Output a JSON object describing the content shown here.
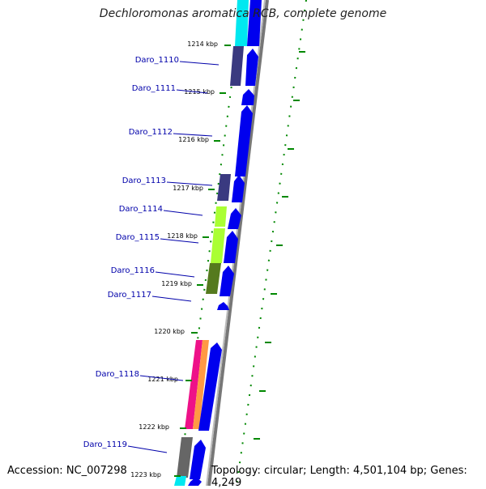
{
  "title": "Dechloromonas aromatica RCB, complete genome",
  "accession": "Accession: NC_007298",
  "topology": "Topology: circular; Length: 4,501,104 bp; Genes: 4,249",
  "colors": {
    "gene_blue": "#0000ee",
    "tick_green": "#008800",
    "label_blue": "#0000aa",
    "backbone": "#999999",
    "cog_cyan": "#00ffff",
    "cog_slate": "#3a3a80",
    "cog_lime": "#aaff33",
    "cog_olive": "#557a1e",
    "cog_gray": "#666666",
    "cog_magenta": "#ee1188",
    "cog_orange": "#ff9944"
  },
  "kbp_ticks": [
    {
      "label": "1214 kbp"
    },
    {
      "label": "1215 kbp"
    },
    {
      "label": "1216 kbp"
    },
    {
      "label": "1217 kbp"
    },
    {
      "label": "1218 kbp"
    },
    {
      "label": "1219 kbp"
    },
    {
      "label": "1220 kbp"
    },
    {
      "label": "1221 kbp"
    },
    {
      "label": "1222 kbp"
    },
    {
      "label": "1223 kbp"
    }
  ],
  "genes": [
    {
      "name": "Daro_1110",
      "cog": "slate"
    },
    {
      "name": "Daro_1111",
      "cog": ""
    },
    {
      "name": "Daro_1112",
      "cog": ""
    },
    {
      "name": "Daro_1113",
      "cog": "slate"
    },
    {
      "name": "Daro_1114",
      "cog": "lime"
    },
    {
      "name": "Daro_1115",
      "cog": "lime"
    },
    {
      "name": "Daro_1116",
      "cog": "olive"
    },
    {
      "name": "Daro_1117",
      "cog": ""
    },
    {
      "name": "Daro_1118",
      "cog": "magenta-orange"
    },
    {
      "name": "Daro_1119",
      "cog": "gray"
    }
  ]
}
